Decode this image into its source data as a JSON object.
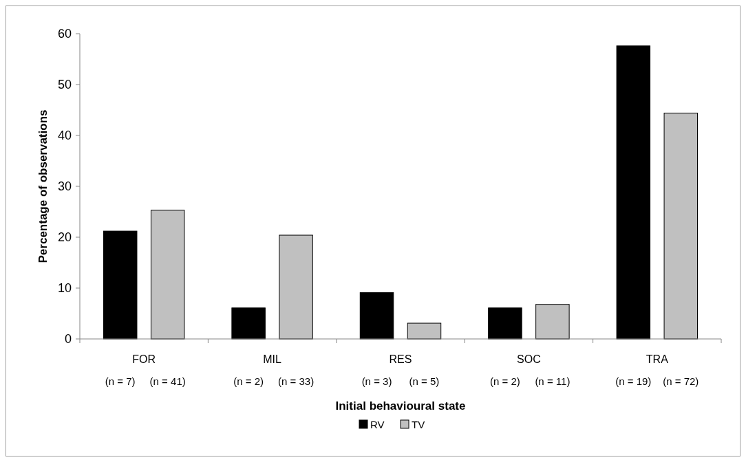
{
  "chart_data": {
    "type": "bar",
    "xlabel": "Initial behavioural state",
    "ylabel": "Percentage of observations",
    "categories": [
      "FOR",
      "MIL",
      "RES",
      "SOC",
      "TRA"
    ],
    "series": [
      {
        "name": "RV",
        "color": "#000000",
        "values": [
          21.2,
          6.1,
          9.1,
          6.1,
          57.6
        ]
      },
      {
        "name": "TV",
        "color": "#c0c0c0",
        "values": [
          25.3,
          20.4,
          3.1,
          6.8,
          44.4
        ]
      }
    ],
    "ylim": [
      0,
      60
    ],
    "yticks": [
      0,
      10,
      20,
      30,
      40,
      50,
      60
    ],
    "grid": false,
    "legend": "bottom",
    "annotations": [
      "(n = 7)",
      "(n = 41)",
      "(n = 2)",
      "(n = 33)",
      "(n = 3)",
      "(n = 5)",
      "(n = 2)",
      "(n = 11)",
      "(n = 19)",
      "(n = 72)"
    ]
  }
}
